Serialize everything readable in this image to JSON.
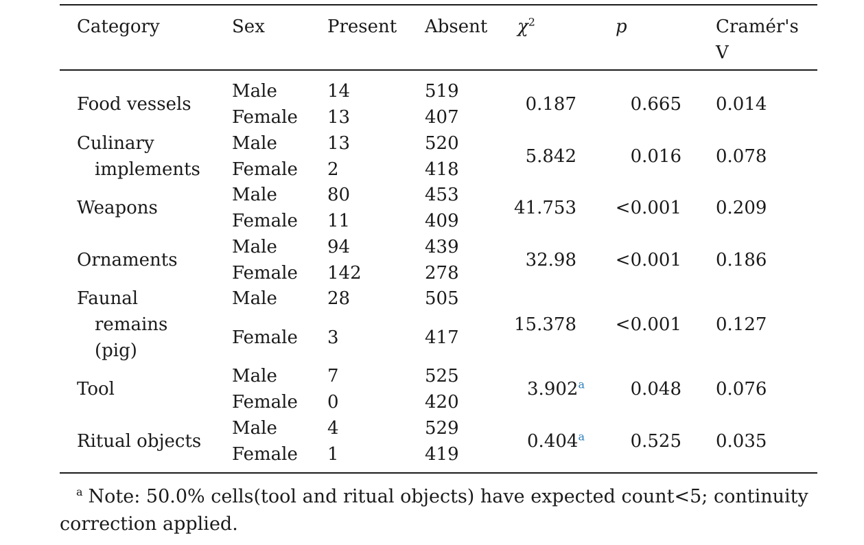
{
  "headers": {
    "category": "Category",
    "sex": "Sex",
    "present": "Present",
    "absent": "Absent",
    "chi_symbol": "χ",
    "chi_exp": "2",
    "p": "p",
    "cramer_line1": "Cramér's",
    "cramer_line2": "V"
  },
  "rows": [
    {
      "cat1": "Food vessels",
      "cat2": "",
      "cat3": "",
      "male_label": "Male",
      "female_label": "Female",
      "male_present": "14",
      "male_absent": "519",
      "female_present": "13",
      "female_absent": "407",
      "chi": "0.187",
      "chi_note": "",
      "p": "0.665",
      "v": "0.014"
    },
    {
      "cat1": "Culinary",
      "cat2": "implements",
      "cat3": "",
      "male_label": "Male",
      "female_label": "Female",
      "male_present": "13",
      "male_absent": "520",
      "female_present": "2",
      "female_absent": "418",
      "chi": "5.842",
      "chi_note": "",
      "p": "0.016",
      "v": "0.078"
    },
    {
      "cat1": "Weapons",
      "cat2": "",
      "cat3": "",
      "male_label": "Male",
      "female_label": "Female",
      "male_present": "80",
      "male_absent": "453",
      "female_present": "11",
      "female_absent": "409",
      "chi": "41.753",
      "chi_note": "",
      "p": "<0.001",
      "v": "0.209"
    },
    {
      "cat1": "Ornaments",
      "cat2": "",
      "cat3": "",
      "male_label": "Male",
      "female_label": "Female",
      "male_present": "94",
      "male_absent": "439",
      "female_present": "142",
      "female_absent": "278",
      "chi": "32.98",
      "chi_note": "",
      "p": "<0.001",
      "v": "0.186"
    },
    {
      "cat1": "Faunal",
      "cat2": "remains",
      "cat3": "(pig)",
      "male_label": "Male",
      "female_label": "Female",
      "male_present": "28",
      "male_absent": "505",
      "female_present": "3",
      "female_absent": "417",
      "chi": "15.378",
      "chi_note": "",
      "p": "<0.001",
      "v": "0.127"
    },
    {
      "cat1": "Tool",
      "cat2": "",
      "cat3": "",
      "male_label": "Male",
      "female_label": "Female",
      "male_present": "7",
      "male_absent": "525",
      "female_present": "0",
      "female_absent": "420",
      "chi": "3.902",
      "chi_note": "a",
      "p": "0.048",
      "v": "0.076"
    },
    {
      "cat1": "Ritual objects",
      "cat2": "",
      "cat3": "",
      "male_label": "Male",
      "female_label": "Female",
      "male_present": "4",
      "male_absent": "529",
      "female_present": "1",
      "female_absent": "419",
      "chi": "0.404",
      "chi_note": "a",
      "p": "0.525",
      "v": "0.035"
    }
  ],
  "footnote": {
    "marker": "a",
    "text": "Note: 50.0% cells(tool and ritual objects) have expected count<5; continuity correction applied."
  }
}
